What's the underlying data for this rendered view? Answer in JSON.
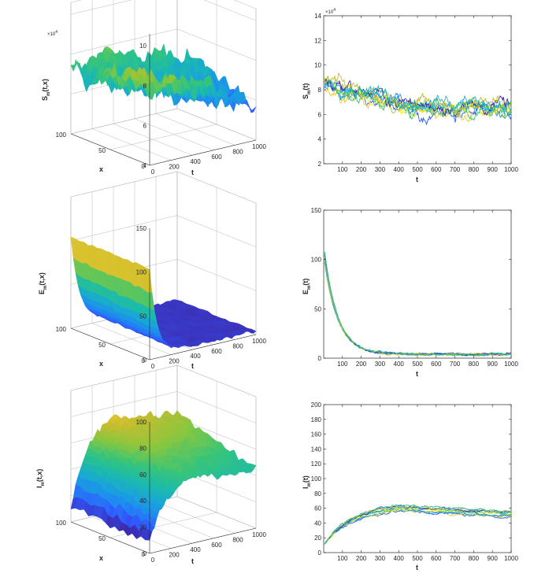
{
  "chart_data": [
    {
      "id": "s3d",
      "type": "surface",
      "ylabel_main": "S",
      "ylabel_sub": "m",
      "ylabel_tail": "(t,x)",
      "xlabel": "t",
      "depth_label": "x",
      "z_ticks": [
        "4",
        "6",
        "8",
        "10"
      ],
      "z_range": [
        4,
        10.6
      ],
      "z_multiplier": "×10",
      "z_multiplier_exp": "4",
      "t_ticks": [
        "0",
        "200",
        "400",
        "600",
        "800",
        "1000"
      ],
      "x_ticks": [
        "0",
        "50",
        "100"
      ],
      "surface_profile": "noisy plateau around 7.5e4, slowly dropping to 6e4 at large t"
    },
    {
      "id": "s2d",
      "type": "line",
      "ylabel_main": "S",
      "ylabel_sub": "m",
      "ylabel_tail": "(t)",
      "xlabel": "t",
      "x_ticks": [
        "100",
        "200",
        "300",
        "400",
        "500",
        "600",
        "700",
        "800",
        "900",
        "1000"
      ],
      "y_ticks": [
        "2",
        "4",
        "6",
        "8",
        "10",
        "12",
        "14"
      ],
      "xlim": [
        0,
        1000
      ],
      "ylim": [
        2,
        14
      ],
      "y_multiplier": "×10",
      "y_multiplier_exp": "4",
      "series_count": 10,
      "profile": {
        "start": 8.5,
        "end": 6.5,
        "noise": 0.9,
        "spread": 0.8
      }
    },
    {
      "id": "e3d",
      "type": "surface",
      "ylabel_main": "E",
      "ylabel_sub": "m",
      "ylabel_tail": "(t,x)",
      "xlabel": "t",
      "depth_label": "x",
      "z_ticks": [
        "0",
        "50",
        "100",
        "150"
      ],
      "z_range": [
        0,
        150
      ],
      "t_ticks": [
        "0",
        "200",
        "400",
        "600",
        "800",
        "1000"
      ],
      "x_ticks": [
        "0",
        "50",
        "100"
      ],
      "surface_profile": "starts near 100, decays exponentially to ~0 by t = 300"
    },
    {
      "id": "e2d",
      "type": "line",
      "ylabel_main": "E",
      "ylabel_sub": "m",
      "ylabel_tail": "(t)",
      "xlabel": "t",
      "x_ticks": [
        "100",
        "200",
        "300",
        "400",
        "500",
        "600",
        "700",
        "800",
        "900",
        "1000"
      ],
      "y_ticks": [
        "0",
        "50",
        "100",
        "150"
      ],
      "xlim": [
        0,
        1000
      ],
      "ylim": [
        0,
        150
      ],
      "series_count": 10,
      "profile": {
        "start": 110,
        "tail": 4,
        "decay_rate": 0.014,
        "noise": 1.8
      }
    },
    {
      "id": "i3d",
      "type": "surface",
      "ylabel_main": "I",
      "ylabel_sub": "m",
      "ylabel_tail": "(t,x)",
      "xlabel": "t",
      "depth_label": "x",
      "z_ticks": [
        "0",
        "20",
        "40",
        "60",
        "80",
        "100"
      ],
      "z_range": [
        0,
        100
      ],
      "t_ticks": [
        "0",
        "200",
        "400",
        "600",
        "800",
        "1000"
      ],
      "x_ticks": [
        "0",
        "50",
        "100"
      ],
      "surface_profile": "rises from ~10 to a noisy plateau around 65, peak ~90 near t = 400"
    },
    {
      "id": "i2d",
      "type": "line",
      "ylabel_main": "I",
      "ylabel_sub": "m",
      "ylabel_tail": "(t)",
      "xlabel": "t",
      "x_ticks": [
        "100",
        "200",
        "300",
        "400",
        "500",
        "600",
        "700",
        "800",
        "900",
        "1000"
      ],
      "y_ticks": [
        "0",
        "20",
        "40",
        "60",
        "80",
        "100",
        "120",
        "140",
        "160",
        "180",
        "200"
      ],
      "xlim": [
        0,
        1000
      ],
      "ylim": [
        0,
        200
      ],
      "series_count": 10,
      "profile": {
        "start": 10,
        "peak": 60,
        "peak_t": 400,
        "end": 52,
        "noise": 3
      }
    }
  ],
  "colors": {
    "palette": [
      "#3e26a8",
      "#2f5bff",
      "#1e8bf0",
      "#19a7d6",
      "#1cbbaa",
      "#37c47a",
      "#86c73f",
      "#c6bd2e",
      "#f1c92e",
      "#f8f81b"
    ]
  }
}
